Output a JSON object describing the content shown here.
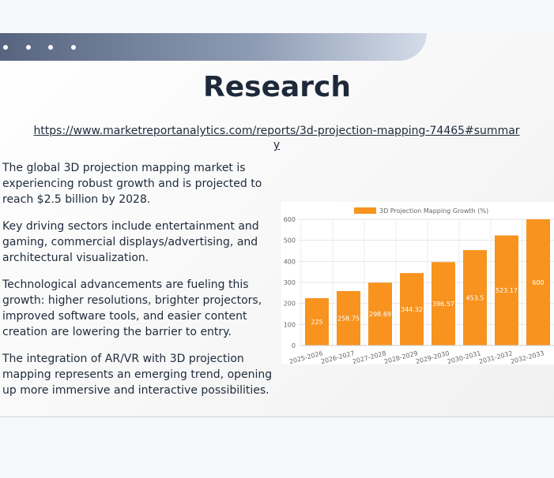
{
  "title": "Research",
  "link": "https://www.marketreportanalytics.com/reports/3d-projection-mapping-74465#summary",
  "paragraphs": [
    "The global 3D projection mapping market is experiencing robust growth and is projected to reach $2.5 billion by 2028.",
    "Key driving sectors include entertainment and gaming, commercial displays/advertising, and architectural visualization.",
    "Technological advancements are fueling this growth: higher resolutions, brighter projectors, improved software tools, and easier content creation are lowering the barrier to entry.",
    "The integration of AR/VR with 3D projection mapping represents an emerging trend, opening up more immersive and interactive possibilities."
  ],
  "chart_data": {
    "type": "bar",
    "categories": [
      "2025-2026",
      "2026-2027",
      "2027-2028",
      "2028-2029",
      "2029-2030",
      "2030-2031",
      "2031-2032",
      "2032-2033"
    ],
    "series": [
      {
        "name": "3D Projection Mapping Growth (%)",
        "color": "#f7931e",
        "values": [
          225,
          258.75,
          298.69,
          344.32,
          396.57,
          453.5,
          523.17,
          600
        ]
      }
    ],
    "ylim": [
      0,
      600
    ],
    "yticks": [
      0,
      100,
      200,
      300,
      400,
      500,
      600
    ],
    "grid": true,
    "legend": "top"
  }
}
